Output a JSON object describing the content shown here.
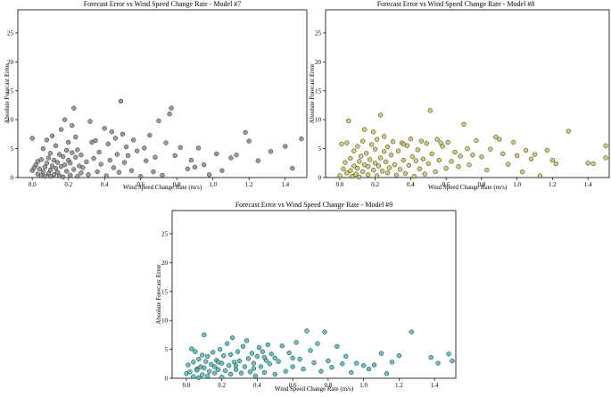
{
  "chart_data": [
    {
      "type": "scatter",
      "title": "Forecast Error vs Wind Speed Change Rate - Model #7",
      "xlabel": "Wind Speed Change Rate (m/s)",
      "ylabel": "Absolute Forecast Error",
      "xlim": [
        -0.08,
        1.52
      ],
      "ylim": [
        0,
        29
      ],
      "xticks": [
        0.0,
        0.2,
        0.4,
        0.6,
        0.8,
        1.0,
        1.2,
        1.4
      ],
      "yticks": [
        0,
        5,
        10,
        15,
        20,
        25
      ],
      "color": "#8c8c8c",
      "points": [
        [
          0.0,
          1.2
        ],
        [
          0.0,
          6.8
        ],
        [
          0.01,
          1.7
        ],
        [
          0.02,
          2.2
        ],
        [
          0.03,
          0.6
        ],
        [
          0.03,
          2.8
        ],
        [
          0.04,
          1.5
        ],
        [
          0.05,
          0.3
        ],
        [
          0.05,
          3.1
        ],
        [
          0.06,
          1.0
        ],
        [
          0.06,
          5.0
        ],
        [
          0.07,
          0.2
        ],
        [
          0.07,
          1.8
        ],
        [
          0.08,
          2.5
        ],
        [
          0.08,
          6.5
        ],
        [
          0.09,
          0.7
        ],
        [
          0.09,
          3.4
        ],
        [
          0.1,
          0.2
        ],
        [
          0.1,
          1.3
        ],
        [
          0.1,
          4.2
        ],
        [
          0.11,
          2.0
        ],
        [
          0.11,
          7.2
        ],
        [
          0.12,
          0.5
        ],
        [
          0.12,
          3.0
        ],
        [
          0.13,
          1.6
        ],
        [
          0.13,
          5.5
        ],
        [
          0.14,
          0.9
        ],
        [
          0.14,
          2.6
        ],
        [
          0.15,
          4.0
        ],
        [
          0.15,
          0.3
        ],
        [
          0.16,
          1.9
        ],
        [
          0.16,
          8.3
        ],
        [
          0.17,
          3.6
        ],
        [
          0.17,
          0.1
        ],
        [
          0.18,
          10.0
        ],
        [
          0.18,
          2.2
        ],
        [
          0.19,
          4.7
        ],
        [
          0.19,
          1.1
        ],
        [
          0.2,
          6.1
        ],
        [
          0.2,
          3.0
        ],
        [
          0.21,
          0.4
        ],
        [
          0.21,
          2.5
        ],
        [
          0.22,
          9.0
        ],
        [
          0.22,
          4.3
        ],
        [
          0.23,
          12.0
        ],
        [
          0.23,
          1.4
        ],
        [
          0.24,
          7.0
        ],
        [
          0.24,
          3.5
        ],
        [
          0.25,
          0.2
        ],
        [
          0.25,
          4.8
        ],
        [
          0.26,
          2.0
        ],
        [
          0.27,
          0.8
        ],
        [
          0.27,
          3.9
        ],
        [
          0.28,
          1.7
        ],
        [
          0.3,
          2.7
        ],
        [
          0.31,
          0.5
        ],
        [
          0.32,
          9.7
        ],
        [
          0.33,
          6.1
        ],
        [
          0.34,
          3.3
        ],
        [
          0.35,
          6.4
        ],
        [
          0.36,
          1.0
        ],
        [
          0.37,
          4.4
        ],
        [
          0.38,
          2.3
        ],
        [
          0.4,
          8.5
        ],
        [
          0.41,
          0.3
        ],
        [
          0.42,
          5.8
        ],
        [
          0.43,
          3.0
        ],
        [
          0.44,
          7.9
        ],
        [
          0.45,
          1.7
        ],
        [
          0.46,
          6.8
        ],
        [
          0.47,
          4.0
        ],
        [
          0.48,
          0.9
        ],
        [
          0.49,
          13.2
        ],
        [
          0.5,
          7.5
        ],
        [
          0.51,
          2.6
        ],
        [
          0.52,
          5.3
        ],
        [
          0.53,
          3.8
        ],
        [
          0.55,
          1.2
        ],
        [
          0.56,
          6.5
        ],
        [
          0.58,
          4.6
        ],
        [
          0.6,
          0.2
        ],
        [
          0.62,
          5.1
        ],
        [
          0.63,
          2.9
        ],
        [
          0.65,
          7.3
        ],
        [
          0.67,
          1.0
        ],
        [
          0.68,
          3.5
        ],
        [
          0.7,
          9.8
        ],
        [
          0.72,
          0.4
        ],
        [
          0.74,
          6.0
        ],
        [
          0.76,
          11.0
        ],
        [
          0.77,
          12.0
        ],
        [
          0.79,
          3.8
        ],
        [
          0.82,
          5.2
        ],
        [
          0.86,
          1.5
        ],
        [
          0.88,
          3.0
        ],
        [
          0.9,
          1.8
        ],
        [
          0.92,
          5.1
        ],
        [
          0.95,
          2.2
        ],
        [
          0.98,
          0.5
        ],
        [
          1.02,
          4.1
        ],
        [
          1.05,
          1.2
        ],
        [
          1.1,
          3.4
        ],
        [
          1.13,
          3.9
        ],
        [
          1.18,
          7.8
        ],
        [
          1.2,
          6.3
        ],
        [
          1.25,
          2.9
        ],
        [
          1.32,
          4.5
        ],
        [
          1.4,
          5.4
        ],
        [
          1.44,
          1.6
        ],
        [
          1.49,
          6.7
        ]
      ]
    },
    {
      "type": "scatter",
      "title": "Forecast Error vs Wind Speed Change Rate - Model #8",
      "xlabel": "Wind Speed Change Rate (m/s)",
      "ylabel": "Absolute Forecast Error",
      "xlim": [
        -0.08,
        1.52
      ],
      "ylim": [
        0,
        29
      ],
      "xticks": [
        0.0,
        0.2,
        0.4,
        0.6,
        0.8,
        1.0,
        1.2,
        1.4
      ],
      "yticks": [
        0,
        5,
        10,
        15,
        20,
        25
      ],
      "color": "#c8c85a",
      "points": [
        [
          0.0,
          0.3
        ],
        [
          0.01,
          5.8
        ],
        [
          0.02,
          1.5
        ],
        [
          0.03,
          2.6
        ],
        [
          0.04,
          0.8
        ],
        [
          0.04,
          6.0
        ],
        [
          0.05,
          9.8
        ],
        [
          0.06,
          1.2
        ],
        [
          0.06,
          3.3
        ],
        [
          0.07,
          0.2
        ],
        [
          0.08,
          2.0
        ],
        [
          0.08,
          4.6
        ],
        [
          0.09,
          0.6
        ],
        [
          0.1,
          1.6
        ],
        [
          0.1,
          5.4
        ],
        [
          0.11,
          2.8
        ],
        [
          0.11,
          0.1
        ],
        [
          0.12,
          3.7
        ],
        [
          0.13,
          1.0
        ],
        [
          0.13,
          6.3
        ],
        [
          0.14,
          2.2
        ],
        [
          0.15,
          4.2
        ],
        [
          0.16,
          0.5
        ],
        [
          0.16,
          1.9
        ],
        [
          0.17,
          3.1
        ],
        [
          0.18,
          5.7
        ],
        [
          0.19,
          1.3
        ],
        [
          0.19,
          7.9
        ],
        [
          0.2,
          2.5
        ],
        [
          0.2,
          4.9
        ],
        [
          0.21,
          0.3
        ],
        [
          0.21,
          6.6
        ],
        [
          0.22,
          2.0
        ],
        [
          0.23,
          10.8
        ],
        [
          0.23,
          3.4
        ],
        [
          0.24,
          1.1
        ],
        [
          0.25,
          4.5
        ],
        [
          0.25,
          7.1
        ],
        [
          0.26,
          2.7
        ],
        [
          0.27,
          0.8
        ],
        [
          0.27,
          5.3
        ],
        [
          0.28,
          1.7
        ],
        [
          0.29,
          3.9
        ],
        [
          0.3,
          6.2
        ],
        [
          0.31,
          2.2
        ],
        [
          0.32,
          0.4
        ],
        [
          0.33,
          4.6
        ],
        [
          0.34,
          1.4
        ],
        [
          0.35,
          6.0
        ],
        [
          0.36,
          3.0
        ],
        [
          0.37,
          0.7
        ],
        [
          0.38,
          5.5
        ],
        [
          0.39,
          2.1
        ],
        [
          0.4,
          6.7
        ],
        [
          0.41,
          3.6
        ],
        [
          0.42,
          0.2
        ],
        [
          0.43,
          2.9
        ],
        [
          0.44,
          4.8
        ],
        [
          0.45,
          1.5
        ],
        [
          0.46,
          6.3
        ],
        [
          0.47,
          3.2
        ],
        [
          0.48,
          0.6
        ],
        [
          0.49,
          5.9
        ],
        [
          0.5,
          2.4
        ],
        [
          0.51,
          11.6
        ],
        [
          0.52,
          4.1
        ],
        [
          0.54,
          1.0
        ],
        [
          0.55,
          6.6
        ],
        [
          0.56,
          3.0
        ],
        [
          0.58,
          5.4
        ],
        [
          0.6,
          1.6
        ],
        [
          0.61,
          6.1
        ],
        [
          0.63,
          2.8
        ],
        [
          0.65,
          4.4
        ],
        [
          0.67,
          1.9
        ],
        [
          0.68,
          3.7
        ],
        [
          0.7,
          9.2
        ],
        [
          0.72,
          5.0
        ],
        [
          0.73,
          2.2
        ],
        [
          0.75,
          3.9
        ],
        [
          0.77,
          6.4
        ],
        [
          0.8,
          3.6
        ],
        [
          0.83,
          1.3
        ],
        [
          0.85,
          4.9
        ],
        [
          0.88,
          7.0
        ],
        [
          0.9,
          6.6
        ],
        [
          0.92,
          4.1
        ],
        [
          0.95,
          2.3
        ],
        [
          0.98,
          6.1
        ],
        [
          1.0,
          3.8
        ],
        [
          1.03,
          1.0
        ],
        [
          1.05,
          4.7
        ],
        [
          1.08,
          3.2
        ],
        [
          1.1,
          4.0
        ],
        [
          1.13,
          0.3
        ],
        [
          1.17,
          4.7
        ],
        [
          1.2,
          3.0
        ],
        [
          1.22,
          2.4
        ],
        [
          1.29,
          8.0
        ],
        [
          1.4,
          2.5
        ],
        [
          1.43,
          2.4
        ],
        [
          1.5,
          5.5
        ],
        [
          1.5,
          3.4
        ],
        [
          0.14,
          8.3
        ],
        [
          0.36,
          5.8
        ],
        [
          0.57,
          6.0
        ]
      ]
    },
    {
      "type": "scatter",
      "title": "Forecast Error vs Wind Speed Change Rate - Model #9",
      "xlabel": "Wind Speed Change Rate (m/s)",
      "ylabel": "Absolute Forecast Error",
      "xlim": [
        -0.08,
        1.52
      ],
      "ylim": [
        0,
        29
      ],
      "xticks": [
        0.0,
        0.2,
        0.4,
        0.6,
        0.8,
        1.0,
        1.2,
        1.4
      ],
      "yticks": [
        0,
        5,
        10,
        15,
        20,
        25
      ],
      "color": "#45bdbd",
      "points": [
        [
          0.0,
          0.8
        ],
        [
          0.01,
          2.3
        ],
        [
          0.02,
          1.1
        ],
        [
          0.03,
          5.1
        ],
        [
          0.04,
          0.3
        ],
        [
          0.04,
          2.8
        ],
        [
          0.05,
          4.6
        ],
        [
          0.06,
          1.6
        ],
        [
          0.07,
          0.1
        ],
        [
          0.07,
          3.3
        ],
        [
          0.08,
          2.0
        ],
        [
          0.09,
          0.6
        ],
        [
          0.09,
          4.0
        ],
        [
          0.1,
          7.5
        ],
        [
          0.1,
          1.8
        ],
        [
          0.11,
          2.9
        ],
        [
          0.12,
          0.4
        ],
        [
          0.12,
          3.8
        ],
        [
          0.13,
          1.2
        ],
        [
          0.14,
          2.4
        ],
        [
          0.15,
          4.5
        ],
        [
          0.16,
          0.9
        ],
        [
          0.16,
          2.0
        ],
        [
          0.17,
          3.1
        ],
        [
          0.18,
          1.5
        ],
        [
          0.19,
          5.0
        ],
        [
          0.2,
          2.6
        ],
        [
          0.2,
          0.2
        ],
        [
          0.21,
          3.9
        ],
        [
          0.22,
          1.3
        ],
        [
          0.23,
          6.0
        ],
        [
          0.24,
          2.2
        ],
        [
          0.25,
          4.1
        ],
        [
          0.25,
          0.7
        ],
        [
          0.26,
          7.0
        ],
        [
          0.27,
          2.8
        ],
        [
          0.28,
          1.5
        ],
        [
          0.29,
          4.6
        ],
        [
          0.3,
          3.0
        ],
        [
          0.31,
          0.9
        ],
        [
          0.32,
          5.5
        ],
        [
          0.33,
          2.0
        ],
        [
          0.34,
          6.5
        ],
        [
          0.35,
          3.4
        ],
        [
          0.36,
          1.1
        ],
        [
          0.37,
          4.3
        ],
        [
          0.38,
          2.6
        ],
        [
          0.39,
          0.4
        ],
        [
          0.4,
          3.8
        ],
        [
          0.41,
          5.3
        ],
        [
          0.42,
          2.0
        ],
        [
          0.43,
          4.6
        ],
        [
          0.44,
          1.0
        ],
        [
          0.45,
          3.1
        ],
        [
          0.46,
          5.8
        ],
        [
          0.47,
          2.5
        ],
        [
          0.48,
          4.2
        ],
        [
          0.5,
          0.7
        ],
        [
          0.5,
          3.5
        ],
        [
          0.52,
          2.9
        ],
        [
          0.54,
          5.6
        ],
        [
          0.56,
          1.2
        ],
        [
          0.58,
          4.4
        ],
        [
          0.6,
          2.0
        ],
        [
          0.62,
          6.2
        ],
        [
          0.64,
          3.3
        ],
        [
          0.66,
          1.6
        ],
        [
          0.68,
          8.2
        ],
        [
          0.7,
          4.8
        ],
        [
          0.72,
          2.7
        ],
        [
          0.74,
          6.0
        ],
        [
          0.76,
          1.2
        ],
        [
          0.78,
          8.0
        ],
        [
          0.8,
          3.0
        ],
        [
          0.82,
          1.9
        ],
        [
          0.85,
          5.5
        ],
        [
          0.88,
          2.5
        ],
        [
          0.9,
          3.8
        ],
        [
          0.93,
          1.0
        ],
        [
          0.96,
          2.6
        ],
        [
          1.0,
          2.2
        ],
        [
          1.03,
          1.6
        ],
        [
          1.06,
          2.3
        ],
        [
          1.1,
          4.3
        ],
        [
          1.13,
          0.8
        ],
        [
          1.16,
          2.8
        ],
        [
          1.2,
          3.9
        ],
        [
          1.27,
          8.0
        ],
        [
          1.38,
          3.6
        ],
        [
          1.42,
          2.6
        ],
        [
          1.48,
          4.2
        ],
        [
          1.5,
          3.0
        ],
        [
          0.06,
          1.4
        ],
        [
          0.18,
          2.8
        ],
        [
          0.28,
          2.2
        ],
        [
          0.38,
          1.7
        ],
        [
          0.44,
          3.6
        ],
        [
          0.6,
          3.5
        ]
      ]
    }
  ]
}
